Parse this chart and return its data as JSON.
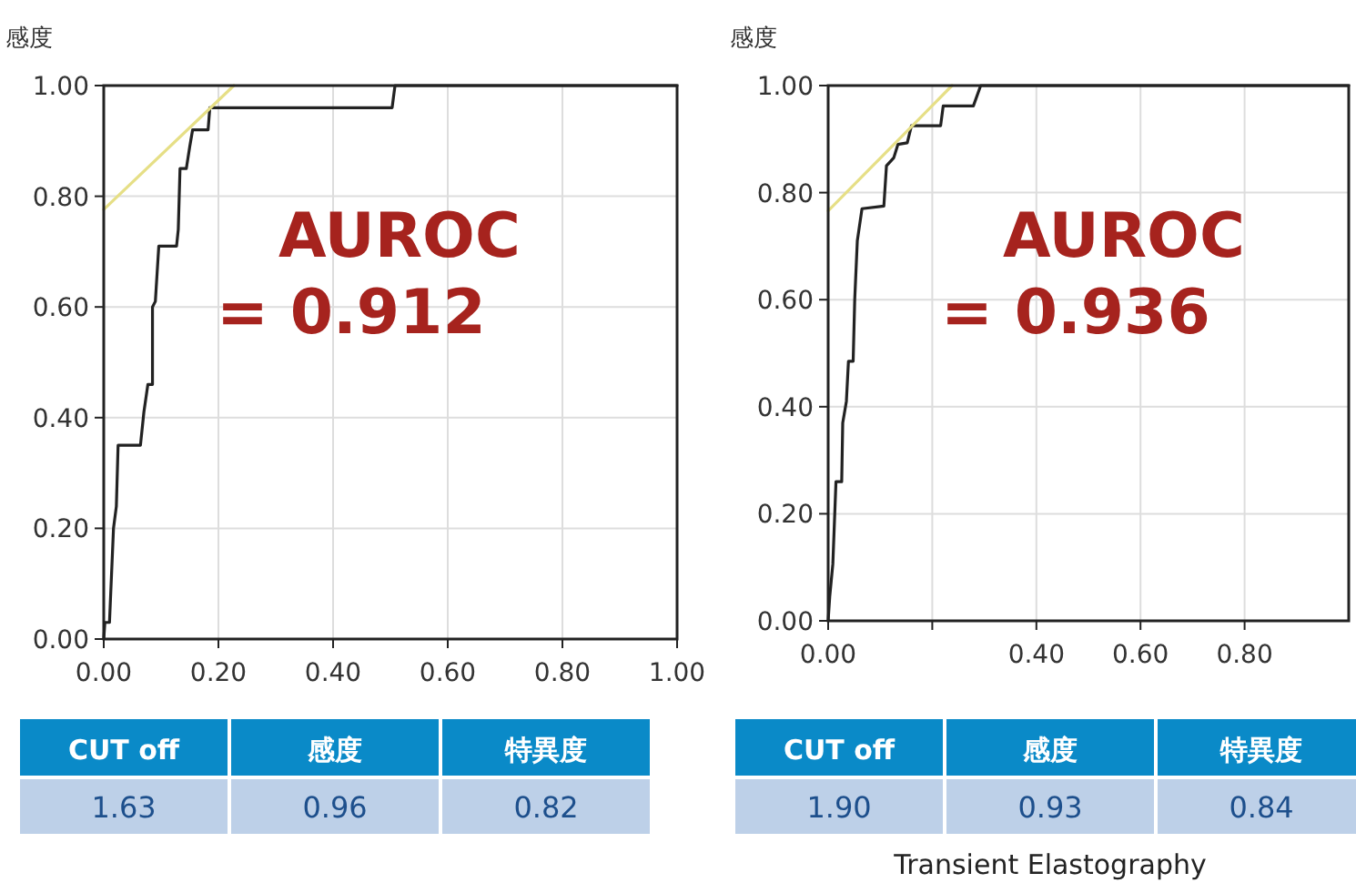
{
  "chart_data": [
    {
      "type": "line",
      "ylabel": "感度",
      "xlim": [
        0,
        1
      ],
      "ylim": [
        0,
        1
      ],
      "xticks": [
        {
          "value": 0,
          "label": "0.00"
        },
        {
          "value": 0.2,
          "label": "0.20"
        },
        {
          "value": 0.4,
          "label": "0.40"
        },
        {
          "value": 0.6,
          "label": "0.60"
        },
        {
          "value": 0.8,
          "label": "0.80"
        },
        {
          "value": 1,
          "label": "1.00"
        }
      ],
      "yticks": [
        {
          "value": 0,
          "label": "0.00"
        },
        {
          "value": 0.2,
          "label": "0.20"
        },
        {
          "value": 0.4,
          "label": "0.40"
        },
        {
          "value": 0.6,
          "label": "0.60"
        },
        {
          "value": 0.8,
          "label": "0.80"
        },
        {
          "value": 1,
          "label": "1.00"
        }
      ],
      "grid": true,
      "series": [
        {
          "color": "#222222",
          "x": [
            0,
            0.002,
            0.01,
            0.017,
            0.022,
            0.025,
            0.064,
            0.07,
            0.077,
            0.085,
            0.085,
            0.09,
            0.096,
            0.127,
            0.13,
            0.133,
            0.144,
            0.15,
            0.155,
            0.182,
            0.185,
            0.503,
            0.508,
            1.0
          ],
          "values": [
            0,
            0.03,
            0.03,
            0.2,
            0.24,
            0.35,
            0.35,
            0.41,
            0.46,
            0.46,
            0.6,
            0.61,
            0.71,
            0.71,
            0.74,
            0.85,
            0.85,
            0.89,
            0.92,
            0.92,
            0.96,
            0.96,
            1.0,
            1.0
          ]
        },
        {
          "color": "#e6df86",
          "x": [
            0,
            0.227
          ],
          "values": [
            0.776,
            1.0
          ]
        }
      ],
      "annotations": [
        "AUROC",
        "= 0.912",
        "CUT off",
        "感度",
        "特異度",
        "1.63",
        "0.96",
        "0.82"
      ]
    },
    {
      "type": "line",
      "ylabel": "感度",
      "xlim": [
        0,
        1
      ],
      "ylim": [
        0,
        1
      ],
      "xticks": [
        {
          "value": 0,
          "label": "0.00"
        },
        {
          "value": 0.2,
          "label": null
        },
        {
          "value": 0.4,
          "label": "0.40"
        },
        {
          "value": 0.6,
          "label": "0.60"
        },
        {
          "value": 0.8,
          "label": "0.80"
        }
      ],
      "yticks": [
        {
          "value": 0,
          "label": "0.00"
        },
        {
          "value": 0.2,
          "label": "0.20"
        },
        {
          "value": 0.4,
          "label": "0.40"
        },
        {
          "value": 0.6,
          "label": "0.60"
        },
        {
          "value": 0.8,
          "label": "0.80"
        },
        {
          "value": 1,
          "label": "1.00"
        }
      ],
      "grid": true,
      "series": [
        {
          "color": "#222222",
          "x": [
            0,
            0.003,
            0.009,
            0.015,
            0.026,
            0.028,
            0.035,
            0.039,
            0.048,
            0.051,
            0.056,
            0.065,
            0.107,
            0.112,
            0.126,
            0.134,
            0.152,
            0.16,
            0.216,
            0.221,
            0.279,
            0.293,
            1.0
          ],
          "values": [
            0,
            0.045,
            0.106,
            0.26,
            0.26,
            0.37,
            0.41,
            0.485,
            0.485,
            0.6,
            0.71,
            0.77,
            0.775,
            0.85,
            0.865,
            0.89,
            0.893,
            0.925,
            0.925,
            0.962,
            0.962,
            1.0,
            1.0
          ]
        },
        {
          "color": "#e6df86",
          "x": [
            0,
            0.238
          ],
          "values": [
            0.766,
            1.0
          ]
        }
      ],
      "annotations": [
        "AUROC",
        "= 0.936",
        "CUT off",
        "感度",
        "特異度",
        "1.90",
        "0.93",
        "0.84",
        "Transient Elastography"
      ]
    }
  ]
}
